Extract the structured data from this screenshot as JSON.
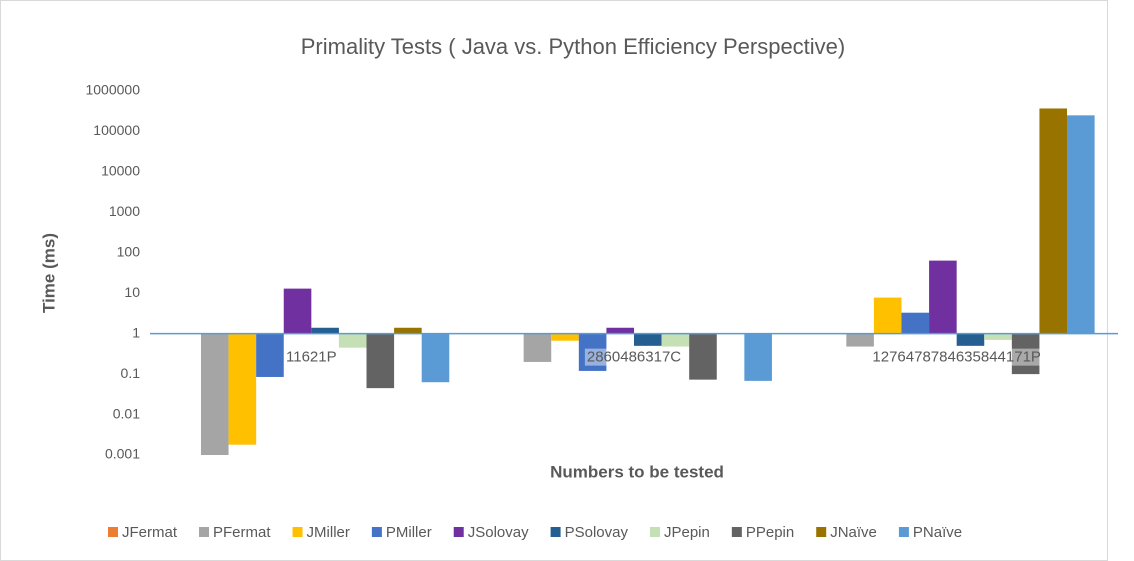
{
  "chart_data": {
    "type": "bar",
    "title": "Primality Tests ( Java vs. Python Efficiency Perspective)",
    "x_label": "Numbers to be tested",
    "y_label": "Time (ms)",
    "categories": [
      "11621P",
      "2860486317C",
      "1276478784635844171P"
    ],
    "log_scale": true,
    "baseline": 1,
    "legend": "bottom",
    "ylim": [
      0.001,
      1000000
    ],
    "yticks": [
      0.001,
      0.01,
      0.1,
      1,
      10,
      100,
      1000,
      10000,
      100000,
      1000000
    ],
    "series": [
      {
        "name": "JFermat",
        "color": "#ED7D31",
        "values": [
          null,
          null,
          null
        ]
      },
      {
        "name": "PFermat",
        "color": "#A5A5A5",
        "values": [
          0.001,
          0.2,
          0.48
        ]
      },
      {
        "name": "JMiller",
        "color": "#FFC000",
        "values": [
          0.0018,
          0.67,
          7.8
        ]
      },
      {
        "name": "PMiller",
        "color": "#4472C4",
        "values": [
          0.085,
          0.12,
          3.3
        ]
      },
      {
        "name": "JSolovay",
        "color": "#7030A0",
        "values": [
          13,
          1.4,
          64
        ]
      },
      {
        "name": "PSolovay",
        "color": "#255E91",
        "values": [
          1.4,
          0.5,
          0.5
        ]
      },
      {
        "name": "JPepin",
        "color": "#C5E0B4",
        "values": [
          0.45,
          0.48,
          0.7
        ]
      },
      {
        "name": "PPepin",
        "color": "#636363",
        "values": [
          0.045,
          0.073,
          0.1
        ]
      },
      {
        "name": "JNaïve",
        "color": "#997300",
        "values": [
          1.4,
          null,
          370000
        ]
      },
      {
        "name": "PNaïve",
        "color": "#5B9BD5",
        "values": [
          0.063,
          0.068,
          250000
        ]
      }
    ]
  }
}
